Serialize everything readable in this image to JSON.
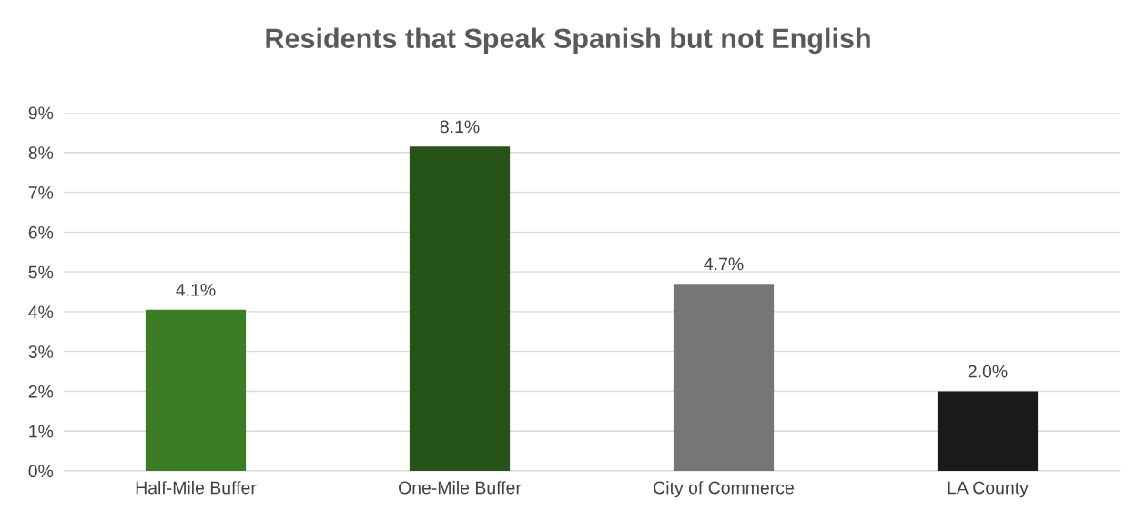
{
  "chart_data": {
    "type": "bar",
    "title": "Residents that Speak Spanish but not English",
    "categories": [
      "Half-Mile Buffer",
      "One-Mile Buffer",
      "City of Commerce",
      "LA County"
    ],
    "values": [
      4.05,
      8.15,
      4.7,
      2.0
    ],
    "colors": [
      "#3b7d23",
      "#265317",
      "#767676",
      "#1a1a1a"
    ],
    "value_labels": [
      "4.1%",
      "8.1%",
      "4.7%",
      "2.0%"
    ],
    "ylim": [
      0,
      9
    ],
    "yticks": [
      {
        "value": 0,
        "label": "0%"
      },
      {
        "value": 1,
        "label": "1%"
      },
      {
        "value": 2,
        "label": "2%"
      },
      {
        "value": 3,
        "label": "3%"
      },
      {
        "value": 4,
        "label": "4%"
      },
      {
        "value": 5,
        "label": "5%"
      },
      {
        "value": 6,
        "label": "6%"
      },
      {
        "value": 7,
        "label": "7%"
      },
      {
        "value": 8,
        "label": "8%"
      },
      {
        "value": 9,
        "label": "9%"
      }
    ],
    "grid": "y"
  }
}
